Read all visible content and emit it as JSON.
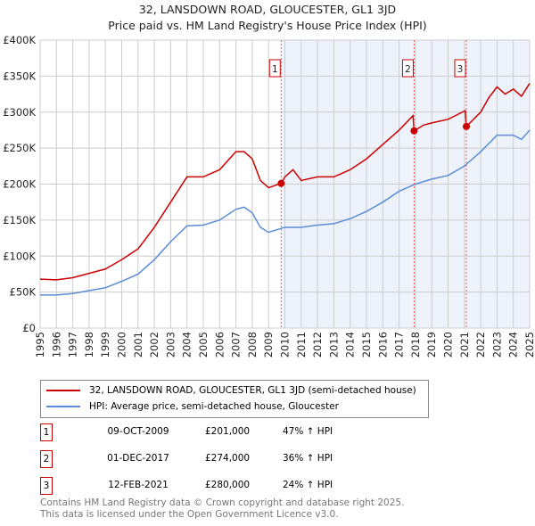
{
  "chart_data": {
    "type": "line",
    "title": "32, LANSDOWN ROAD, GLOUCESTER, GL1 3JD",
    "subtitle": "Price paid vs. HM Land Registry's House Price Index (HPI)",
    "xlim": [
      1995,
      2025
    ],
    "ylim": [
      0,
      400000
    ],
    "yticks": [
      {
        "v": 0,
        "label": "£0"
      },
      {
        "v": 50000,
        "label": "£50K"
      },
      {
        "v": 100000,
        "label": "£100K"
      },
      {
        "v": 150000,
        "label": "£150K"
      },
      {
        "v": 200000,
        "label": "£200K"
      },
      {
        "v": 250000,
        "label": "£250K"
      },
      {
        "v": 300000,
        "label": "£300K"
      },
      {
        "v": 350000,
        "label": "£350K"
      },
      {
        "v": 400000,
        "label": "£400K"
      }
    ],
    "xticks": [
      "1995",
      "1996",
      "1997",
      "1998",
      "1999",
      "2000",
      "2001",
      "2002",
      "2003",
      "2004",
      "2005",
      "2006",
      "2007",
      "2008",
      "2009",
      "2010",
      "2011",
      "2012",
      "2013",
      "2014",
      "2015",
      "2016",
      "2017",
      "2018",
      "2019",
      "2020",
      "2021",
      "2022",
      "2023",
      "2024",
      "2025"
    ],
    "series": [
      {
        "name": "32, LANSDOWN ROAD, GLOUCESTER, GL1 3JD (semi-detached house)",
        "color": "#cc0000",
        "x": [
          1995,
          1996,
          1997,
          1998,
          1999,
          2000,
          2001,
          2002,
          2003,
          2004,
          2005,
          2006,
          2007,
          2007.5,
          2008,
          2008.5,
          2009,
          2009.77,
          2010,
          2010.5,
          2011,
          2012,
          2013,
          2014,
          2015,
          2016,
          2017,
          2017.85,
          2017.92,
          2018.5,
          2019,
          2020,
          2021.05,
          2021.12,
          2022,
          2022.5,
          2023,
          2023.5,
          2024,
          2024.5,
          2025
        ],
        "y": [
          68000,
          67000,
          70000,
          76000,
          82000,
          95000,
          110000,
          140000,
          175000,
          210000,
          210000,
          220000,
          245000,
          245000,
          235000,
          205000,
          195000,
          201000,
          210000,
          220000,
          205000,
          210000,
          210000,
          220000,
          235000,
          255000,
          275000,
          295000,
          274000,
          282000,
          285000,
          290000,
          302000,
          280000,
          300000,
          320000,
          335000,
          325000,
          332000,
          322000,
          340000
        ]
      },
      {
        "name": "HPI: Average price, semi-detached house, Gloucester",
        "color": "#5b8dd6",
        "x": [
          1995,
          1996,
          1997,
          1998,
          1999,
          2000,
          2001,
          2002,
          2003,
          2004,
          2005,
          2006,
          2007,
          2007.5,
          2008,
          2008.5,
          2009,
          2010,
          2011,
          2012,
          2013,
          2014,
          2015,
          2016,
          2017,
          2018,
          2019,
          2020,
          2021,
          2022,
          2023,
          2024,
          2024.5,
          2025
        ],
        "y": [
          46000,
          46000,
          48000,
          52000,
          56000,
          65000,
          75000,
          95000,
          120000,
          142000,
          143000,
          150000,
          165000,
          168000,
          160000,
          140000,
          133000,
          140000,
          140000,
          143000,
          145000,
          152000,
          162000,
          175000,
          190000,
          200000,
          207000,
          212000,
          225000,
          245000,
          268000,
          268000,
          262000,
          275000
        ]
      }
    ],
    "sales": [
      {
        "label": "1",
        "x": 2009.77,
        "y": 201000,
        "date": "09-OCT-2009",
        "price": "£201,000",
        "hpi": "47% ↑ HPI"
      },
      {
        "label": "2",
        "x": 2017.92,
        "y": 274000,
        "date": "01-DEC-2017",
        "price": "£274,000",
        "hpi": "36% ↑ HPI"
      },
      {
        "label": "3",
        "x": 2021.12,
        "y": 280000,
        "date": "12-FEB-2021",
        "price": "£280,000",
        "hpi": "24% ↑ HPI"
      }
    ]
  },
  "footer": [
    "Contains HM Land Registry data © Crown copyright and database right 2025.",
    "This data is licensed under the Open Government Licence v3.0."
  ]
}
